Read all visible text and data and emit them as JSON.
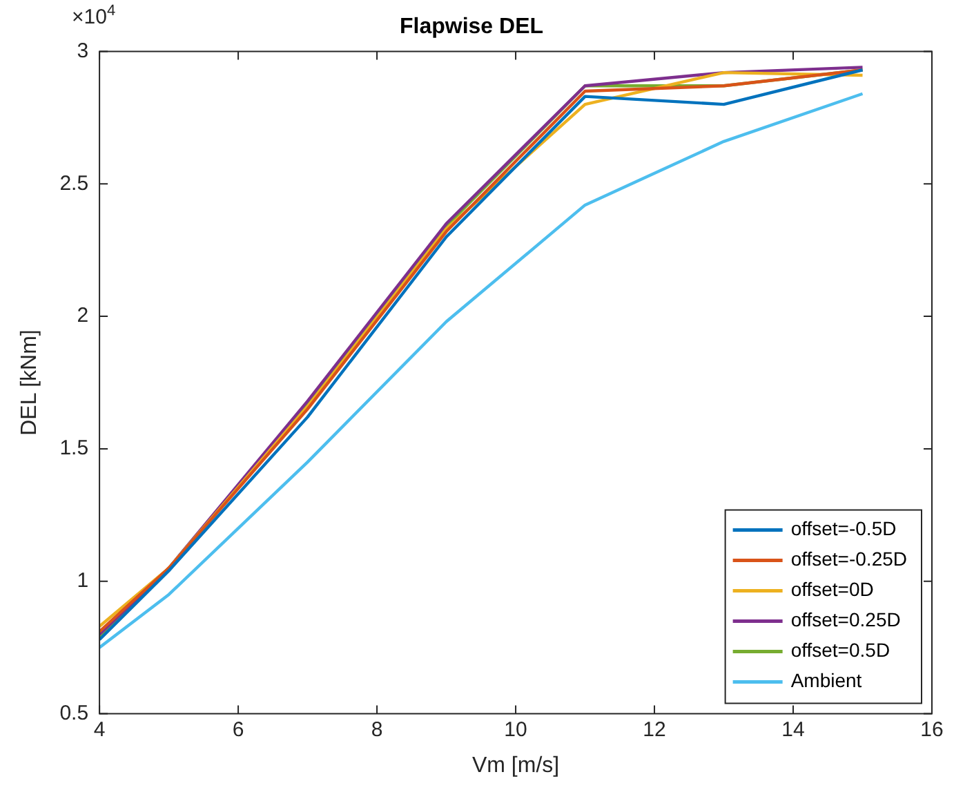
{
  "chart_data": {
    "type": "line",
    "title": "Flapwise DEL",
    "xlabel": "Vm [m/s]",
    "ylabel": "DEL [kNm]",
    "x": [
      4,
      5,
      7,
      9,
      11,
      13,
      15
    ],
    "series": [
      {
        "name": "offset=-0.5D",
        "color": "#0072bd",
        "values": [
          0.78,
          1.04,
          1.62,
          2.3,
          2.83,
          2.8,
          2.93
        ]
      },
      {
        "name": "offset=-0.25D",
        "color": "#d95319",
        "values": [
          0.81,
          1.05,
          1.65,
          2.32,
          2.85,
          2.87,
          2.93
        ]
      },
      {
        "name": "offset=0D",
        "color": "#edb120",
        "values": [
          0.83,
          1.05,
          1.66,
          2.33,
          2.8,
          2.92,
          2.91
        ]
      },
      {
        "name": "offset=0.25D",
        "color": "#7e2f8e",
        "values": [
          0.8,
          1.05,
          1.68,
          2.35,
          2.87,
          2.92,
          2.94
        ]
      },
      {
        "name": "offset=0.5D",
        "color": "#77ac30",
        "values": [
          0.79,
          1.05,
          1.67,
          2.34,
          2.87,
          2.87,
          2.93
        ]
      },
      {
        "name": "Ambient",
        "color": "#4dbeee",
        "values": [
          0.75,
          0.95,
          1.45,
          1.98,
          2.42,
          2.66,
          2.84
        ]
      }
    ],
    "xlim": [
      4,
      16
    ],
    "xticks": [
      4,
      6,
      8,
      10,
      12,
      14,
      16
    ],
    "ylim": [
      0.5,
      3
    ],
    "yticks": [
      0.5,
      1,
      1.5,
      2,
      2.5,
      3
    ],
    "annotations": [
      "×10$^{4}$"
    ],
    "grid": false,
    "legend": "bottom right",
    "marker": "none",
    "line_style": "solid"
  }
}
